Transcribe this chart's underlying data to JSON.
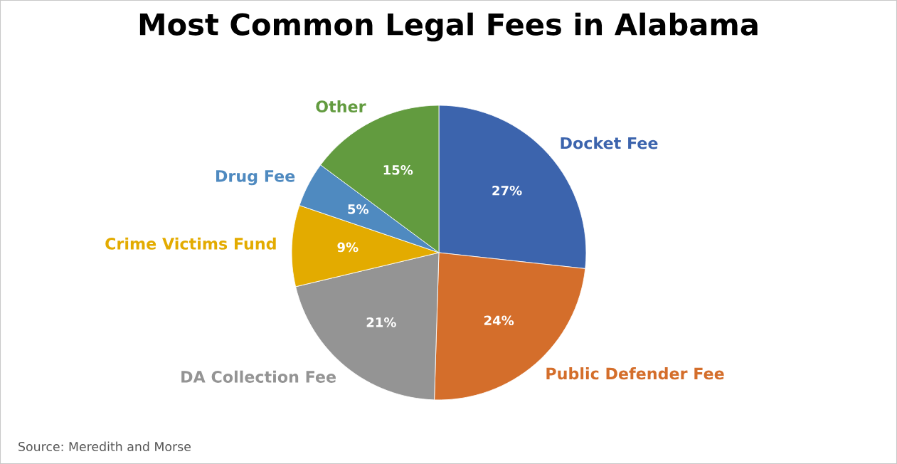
{
  "chart_data": {
    "type": "pie",
    "title": "Most Common Legal Fees in Alabama",
    "categories": [
      "Docket Fee",
      "Public Defender Fee",
      "DA Collection Fee",
      "Crime Victims Fund",
      "Drug Fee",
      "Other"
    ],
    "values": [
      27,
      24,
      21,
      9,
      5,
      15
    ],
    "colors": [
      "#3c64ad",
      "#d46e2b",
      "#949494",
      "#e3ab00",
      "#4f8ac0",
      "#629b3f"
    ],
    "value_labels": [
      "27%",
      "24%",
      "21%",
      "9%",
      "5%",
      "15%"
    ],
    "annotations": [
      "Source: Meredith and Morse"
    ]
  }
}
